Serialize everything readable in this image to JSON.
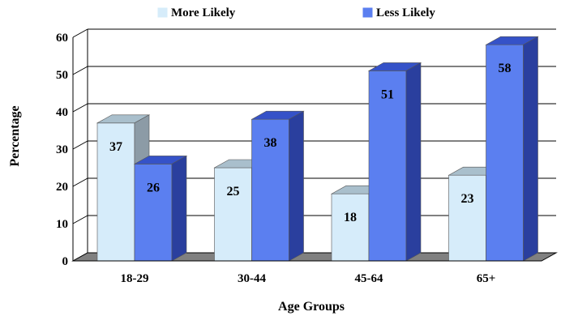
{
  "chart_data": {
    "type": "bar",
    "categories": [
      "18-29",
      "30-44",
      "45-64",
      "65+"
    ],
    "series": [
      {
        "name": "More Likely",
        "values": [
          37,
          25,
          18,
          23
        ],
        "color": "#d6ecfa",
        "top_color": "#a9bfcc",
        "side_color": "#8c9ba6"
      },
      {
        "name": "Less Likely",
        "values": [
          26,
          38,
          51,
          58
        ],
        "color": "#5b7ff0",
        "top_color": "#3552c8",
        "side_color": "#2a3f9e"
      }
    ],
    "xlabel": "Age Groups",
    "ylabel": "Percentage",
    "ylim": [
      0,
      60
    ],
    "yticks": [
      "0",
      "10",
      "20",
      "30",
      "40",
      "50",
      "60"
    ],
    "grid": true,
    "legend_position": "top-center",
    "three_d": true,
    "floor_color": "#808080"
  }
}
